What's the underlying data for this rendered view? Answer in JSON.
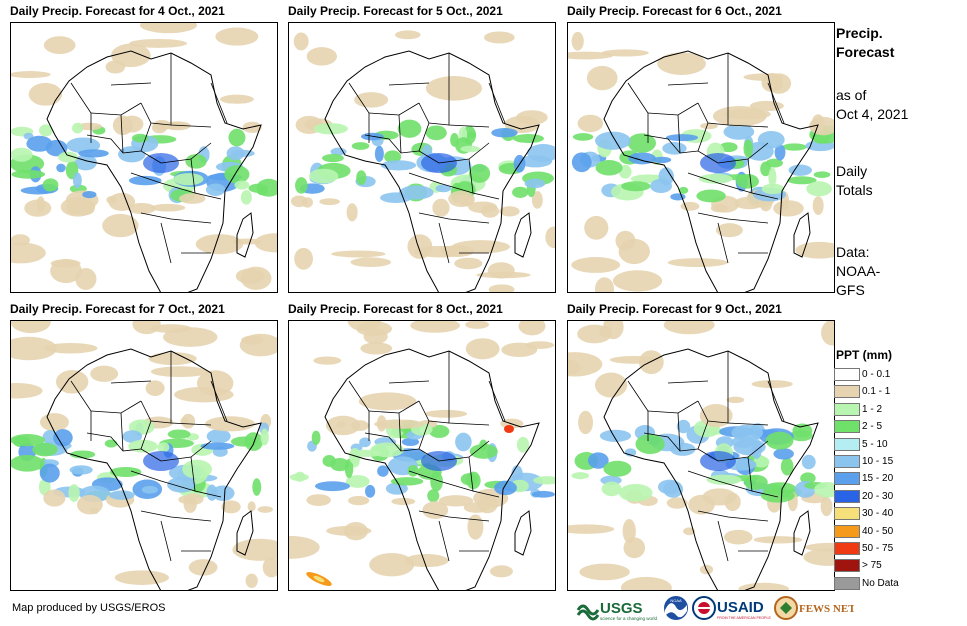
{
  "panels": [
    {
      "title": "Daily Precip. Forecast for 4 Oct., 2021"
    },
    {
      "title": "Daily Precip. Forecast for 5 Oct., 2021"
    },
    {
      "title": "Daily Precip. Forecast for 6 Oct., 2021"
    },
    {
      "title": "Daily Precip. Forecast for 7 Oct., 2021"
    },
    {
      "title": "Daily Precip. Forecast for 8 Oct., 2021"
    },
    {
      "title": "Daily Precip. Forecast for 9 Oct., 2021"
    }
  ],
  "side": {
    "title_line1": "Precip.",
    "title_line2": "Forecast",
    "asof_line1": "as of",
    "asof_line2": "Oct 4, 2021",
    "totals_line1": "Daily",
    "totals_line2": "Totals",
    "data_line1": "Data:",
    "data_line2": "NOAA-",
    "data_line3": "GFS"
  },
  "legend": {
    "title": "PPT (mm)",
    "items": [
      {
        "label": "0 - 0.1",
        "color": "#ffffff"
      },
      {
        "label": "0.1 - 1",
        "color": "#e6d4b0"
      },
      {
        "label": "1 - 2",
        "color": "#b8f5b0"
      },
      {
        "label": "2 - 5",
        "color": "#6fe06a"
      },
      {
        "label": "5 - 10",
        "color": "#b4eef2"
      },
      {
        "label": "10 - 15",
        "color": "#8cc4f0"
      },
      {
        "label": "15 - 20",
        "color": "#5aa0ec"
      },
      {
        "label": "20 - 30",
        "color": "#2a64e6"
      },
      {
        "label": "30 - 40",
        "color": "#f5e07a"
      },
      {
        "label": "40 - 50",
        "color": "#f59a1a"
      },
      {
        "label": "50 - 75",
        "color": "#f03a14"
      },
      {
        "label": "> 75",
        "color": "#a01410"
      },
      {
        "label": "No Data",
        "color": "#9a9a9a"
      }
    ]
  },
  "credit": "Map produced by USGS/EROS",
  "logos": {
    "usgs": "USGS",
    "usgs_tagline": "science for a changing world",
    "noaa": "NOAA",
    "usaid": "USAID",
    "usaid_tagline": "FROM THE AMERICAN PEOPLE",
    "fews": "FEWS NET"
  }
}
